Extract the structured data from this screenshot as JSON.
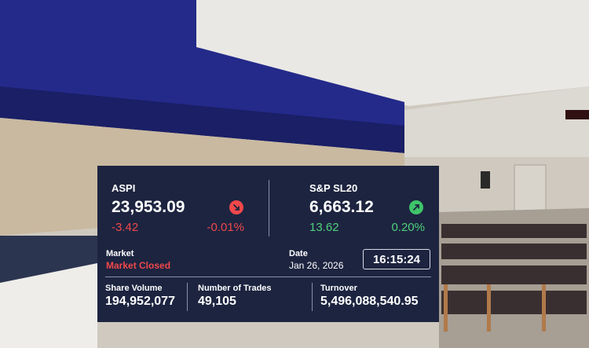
{
  "indices": [
    {
      "name": "ASPI",
      "value": "23,953.09",
      "change": "-3.42",
      "percent": "-0.01%"
    },
    {
      "name": "S&P SL20",
      "value": "6,663.12",
      "change": "13.62",
      "percent": "0.20%"
    }
  ],
  "market": {
    "label": "Market",
    "status": "Market Closed"
  },
  "date": {
    "label": "Date",
    "value": "Jan 26, 2026"
  },
  "time": "16:15:24",
  "stats": [
    {
      "label": "Share Volume",
      "value": "194,952,077"
    },
    {
      "label": "Number of Trades",
      "value": "49,105"
    },
    {
      "label": "Turnover",
      "value": "5,496,088,540.95"
    }
  ]
}
